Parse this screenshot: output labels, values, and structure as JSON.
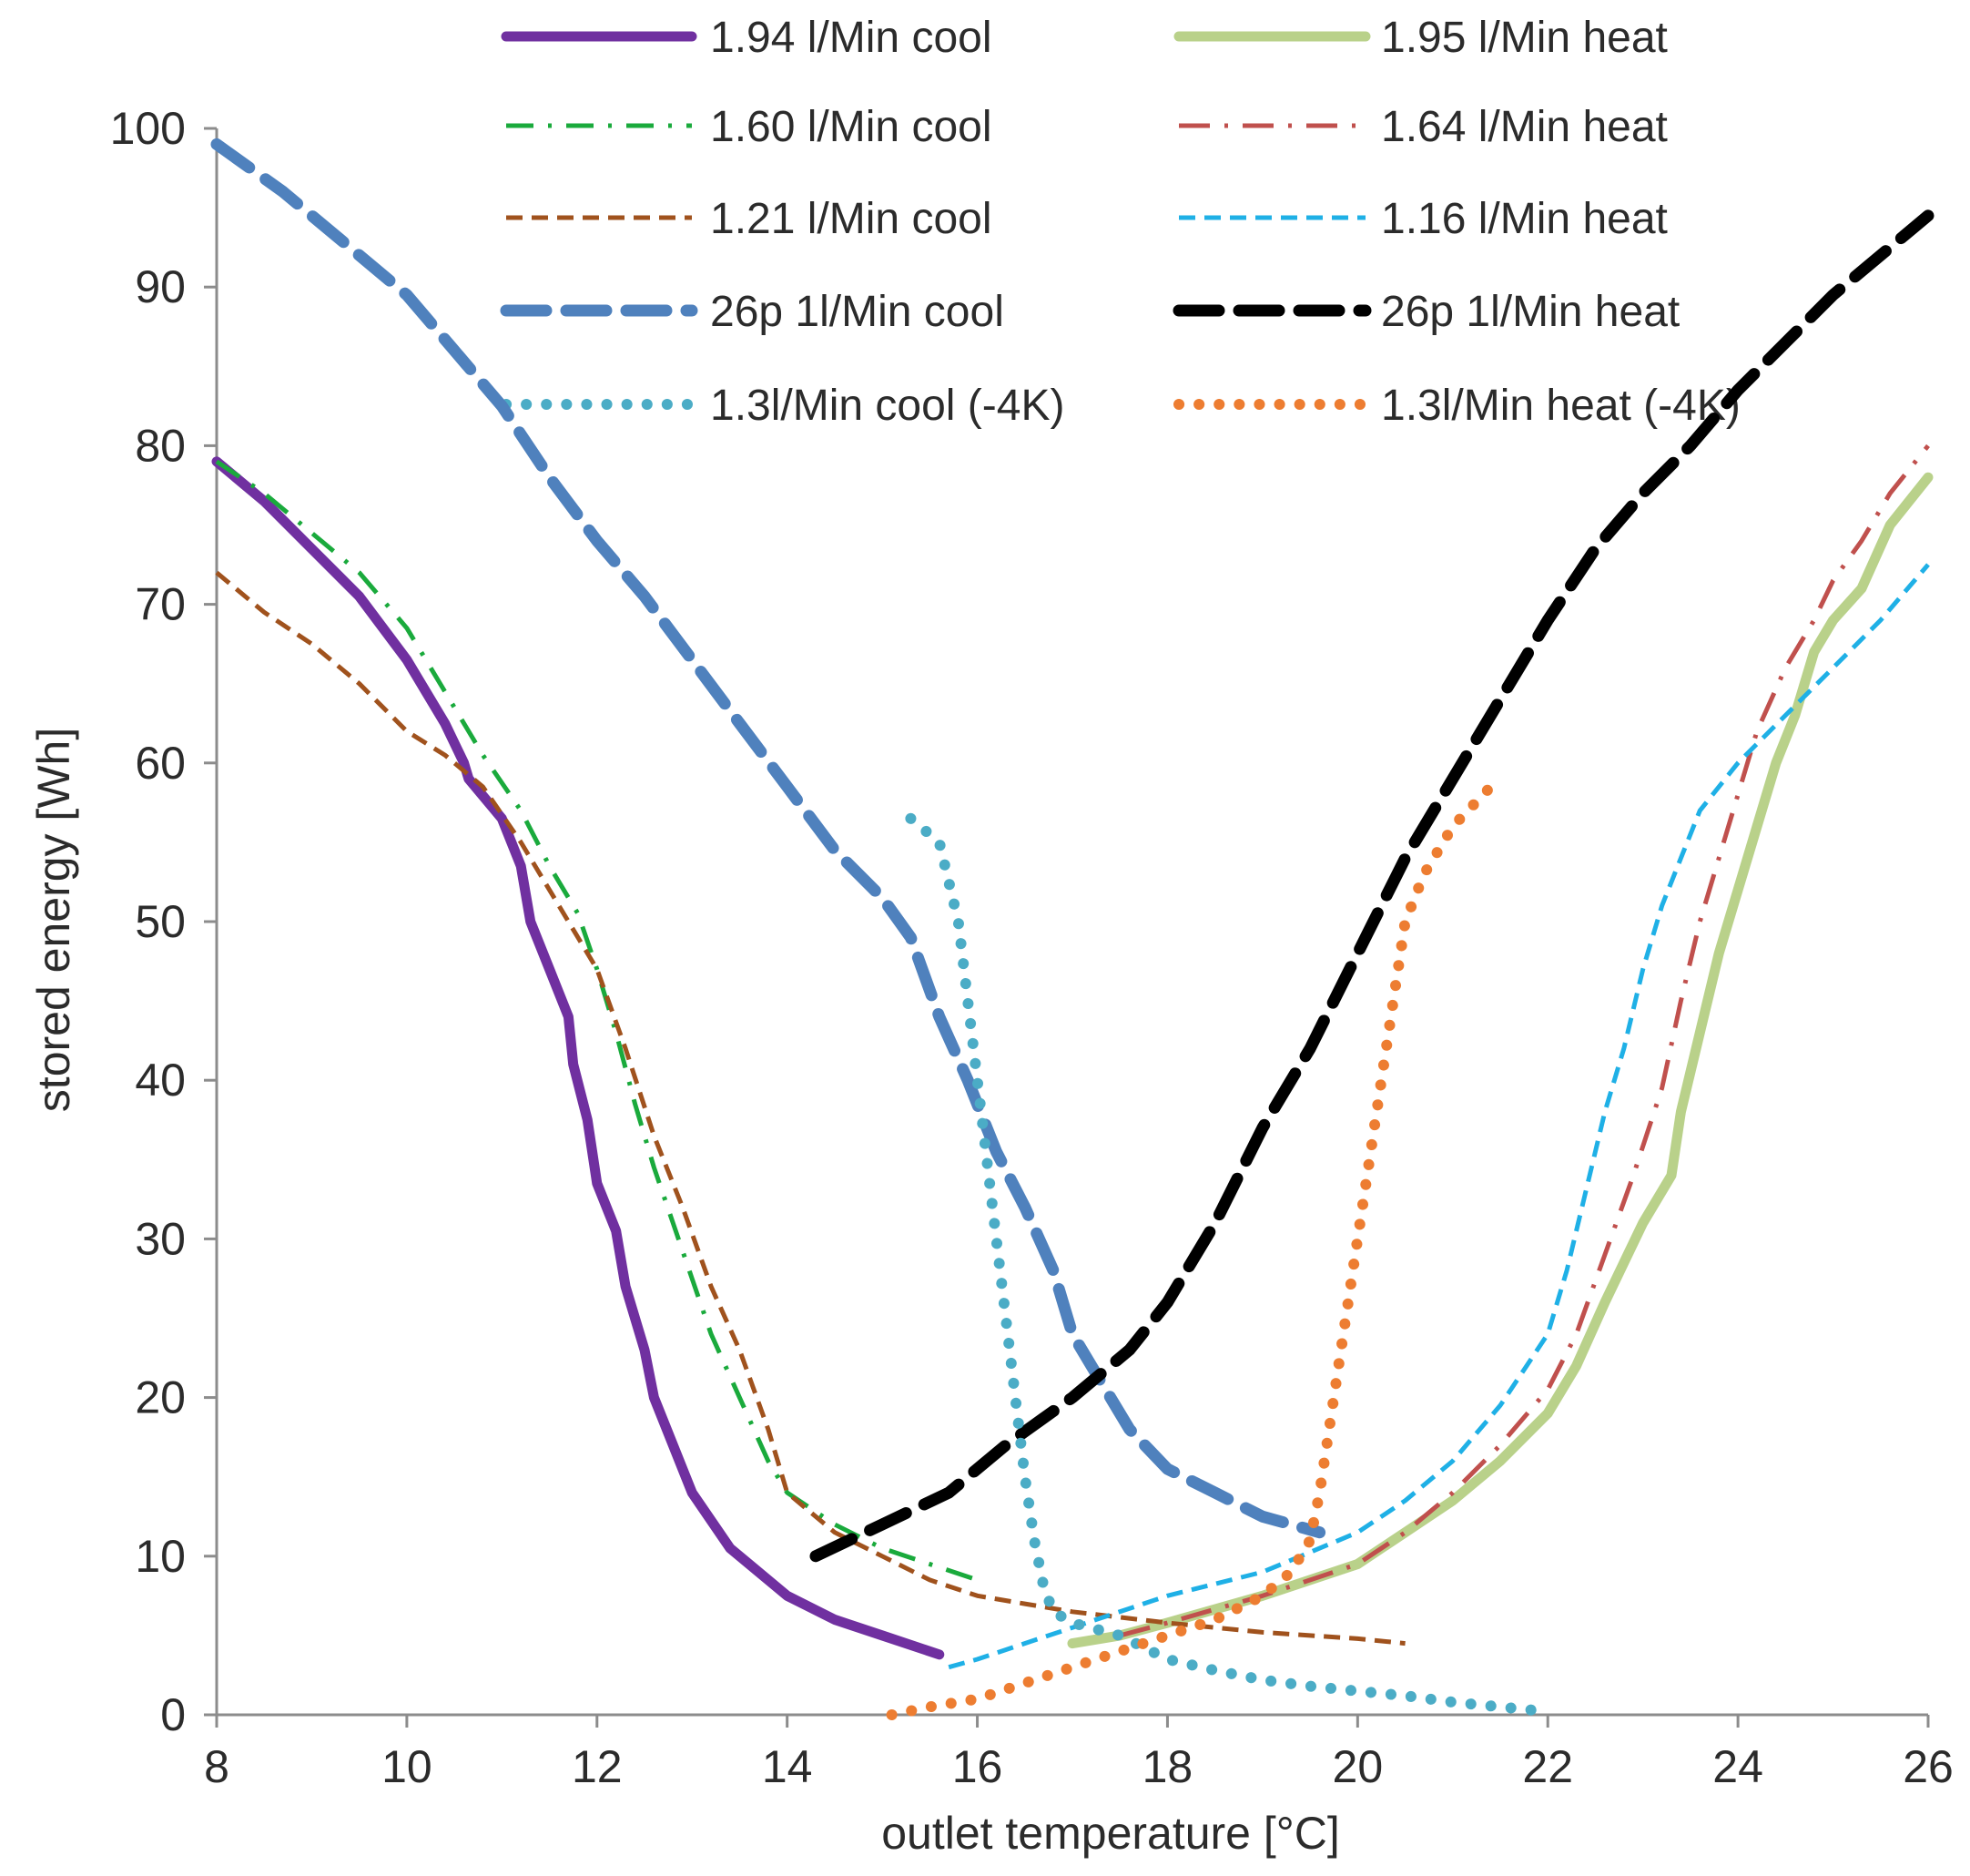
{
  "chart_data": {
    "type": "line",
    "xlabel": "outlet temperature [°C]",
    "ylabel": "stored energy [Wh]",
    "xlim": [
      8,
      26
    ],
    "ylim": [
      0,
      100
    ],
    "xticks": [
      8,
      10,
      12,
      14,
      16,
      18,
      20,
      22,
      24,
      26
    ],
    "yticks": [
      0,
      10,
      20,
      30,
      40,
      50,
      60,
      70,
      80,
      90,
      100
    ],
    "grid": false,
    "legend_position": "top",
    "series": [
      {
        "name": "1.94 l/Min cool",
        "color": "#7030a0",
        "style": "solid-thick",
        "x": [
          8.0,
          8.5,
          9.0,
          9.5,
          10.0,
          10.4,
          10.6,
          10.65,
          11.0,
          11.2,
          11.3,
          11.5,
          11.7,
          11.75,
          11.9,
          12.0,
          12.2,
          12.3,
          12.5,
          12.6,
          13.0,
          13.4,
          13.6,
          14.0,
          14.5,
          15.0,
          15.6
        ],
        "y": [
          79,
          76.5,
          73.5,
          70.5,
          66.5,
          62.5,
          60.0,
          59.0,
          56.5,
          53.5,
          50.0,
          47.0,
          44.0,
          41.0,
          37.5,
          33.5,
          30.5,
          27.0,
          23.0,
          20.0,
          14.0,
          10.5,
          9.5,
          7.5,
          6.0,
          5.0,
          3.8
        ]
      },
      {
        "name": "1.95 l/Min heat",
        "color": "#b9d18a",
        "style": "solid-thick",
        "x": [
          17.0,
          17.5,
          18.0,
          19.0,
          20.0,
          20.5,
          21.0,
          21.5,
          22.0,
          22.3,
          22.6,
          23.0,
          23.3,
          23.4,
          23.6,
          23.8,
          24.0,
          24.2,
          24.4,
          24.6,
          24.8,
          25.0,
          25.3,
          25.6,
          26.0
        ],
        "y": [
          4.5,
          5.0,
          5.8,
          7.5,
          9.5,
          11.5,
          13.5,
          16.0,
          19.0,
          22.0,
          26.0,
          31.0,
          34.0,
          38.0,
          43.0,
          48.0,
          52.0,
          56.0,
          60.0,
          63.0,
          67.0,
          69.0,
          71.0,
          75.0,
          78.0
        ]
      },
      {
        "name": "1.60 l/Min cool",
        "color": "#1aaa3c",
        "style": "dash-dot",
        "x": [
          8.0,
          8.5,
          9.0,
          9.5,
          10.0,
          10.4,
          10.8,
          11.2,
          11.5,
          11.8,
          12.0,
          12.2,
          12.4,
          12.6,
          12.8,
          13.0,
          13.2,
          13.5,
          13.8,
          14.0,
          14.5,
          15.0,
          15.5,
          16.0
        ],
        "y": [
          79,
          77.0,
          74.5,
          72.0,
          68.5,
          64.5,
          60.5,
          57.0,
          53.5,
          50.5,
          47.0,
          43.0,
          38.5,
          34.5,
          31.0,
          27.5,
          24.0,
          20.0,
          16.0,
          14.0,
          12.0,
          10.5,
          9.5,
          8.5
        ]
      },
      {
        "name": "1.64 l/Min heat",
        "color": "#c0504d",
        "style": "long-dash-dot",
        "x": [
          17.5,
          18.0,
          19.0,
          20.0,
          20.5,
          21.0,
          21.5,
          22.0,
          22.3,
          22.6,
          22.9,
          23.2,
          23.4,
          23.6,
          23.8,
          24.0,
          24.2,
          24.5,
          24.8,
          25.0,
          25.3,
          25.6,
          26.0
        ],
        "y": [
          5.0,
          5.8,
          7.5,
          9.5,
          11.5,
          14.0,
          17.0,
          20.5,
          24.0,
          29.0,
          34.0,
          39.5,
          45.0,
          50.0,
          54.0,
          58.0,
          62.0,
          66.0,
          69.0,
          71.5,
          74.0,
          77.0,
          80.0
        ]
      },
      {
        "name": "1.21 l/Min cool",
        "color": "#a0521d",
        "style": "short-dash",
        "x": [
          8.0,
          8.5,
          9.0,
          9.5,
          10.0,
          10.4,
          10.8,
          11.2,
          11.6,
          12.0,
          12.3,
          12.6,
          12.9,
          13.2,
          13.5,
          13.8,
          14.0,
          14.5,
          15.0,
          15.5,
          16.0,
          16.5,
          17.0,
          18.0,
          19.0,
          20.0,
          20.5
        ],
        "y": [
          72,
          69.5,
          67.5,
          65.0,
          62.0,
          60.5,
          58.5,
          55.0,
          51.0,
          47.0,
          42.0,
          36.5,
          32.0,
          27.0,
          23.0,
          18.0,
          14.0,
          11.5,
          10.0,
          8.5,
          7.5,
          7.0,
          6.5,
          5.8,
          5.2,
          4.8,
          4.5
        ]
      },
      {
        "name": "1.16 l/Min heat",
        "color": "#1fb0e6",
        "style": "short-dash",
        "x": [
          15.7,
          16.0,
          17.0,
          18.0,
          19.0,
          20.0,
          20.5,
          21.0,
          21.5,
          22.0,
          22.2,
          22.4,
          22.6,
          22.8,
          23.0,
          23.2,
          23.4,
          23.6,
          24.0,
          24.5,
          25.0,
          25.5,
          26.0
        ],
        "y": [
          3.0,
          3.5,
          5.5,
          7.5,
          9.0,
          11.5,
          13.5,
          16.0,
          19.5,
          24.0,
          28.0,
          33.0,
          38.0,
          42.0,
          47.0,
          51.0,
          54.0,
          57.0,
          60.0,
          63.0,
          66.0,
          69.0,
          72.5
        ]
      },
      {
        "name": "26p 1l/Min cool",
        "color": "#4f81bd",
        "style": "long-dash-thick",
        "x": [
          8.0,
          8.7,
          9.3,
          10.0,
          10.5,
          11.0,
          11.5,
          12.0,
          12.5,
          13.0,
          13.5,
          14.0,
          14.5,
          15.0,
          15.3,
          15.6,
          15.9,
          16.2,
          16.5,
          16.8,
          17.0,
          17.3,
          17.6,
          18.0,
          18.5,
          19.0,
          19.6
        ],
        "y": [
          99,
          96.0,
          93.0,
          89.5,
          86.0,
          82.5,
          78.0,
          74.0,
          70.5,
          66.5,
          62.5,
          58.5,
          54.5,
          51.5,
          49.0,
          44.0,
          40.0,
          35.5,
          32.0,
          28.0,
          24.0,
          21.0,
          18.0,
          15.5,
          14.0,
          12.5,
          11.5
        ]
      },
      {
        "name": "26p 1l/Min heat",
        "color": "#000000",
        "style": "long-dash-thick",
        "x": [
          14.3,
          15.0,
          15.7,
          16.3,
          17.0,
          17.6,
          18.0,
          18.5,
          19.0,
          19.5,
          20.0,
          20.5,
          21.0,
          21.5,
          22.0,
          22.5,
          23.0,
          23.5,
          24.0,
          24.5,
          25.0,
          25.5,
          26.0
        ],
        "y": [
          10.0,
          12.0,
          14.0,
          17.0,
          20.0,
          23.0,
          26.0,
          31.0,
          37.0,
          42.0,
          48.0,
          54.0,
          59.0,
          64.0,
          69.0,
          73.5,
          77.0,
          80.0,
          83.5,
          86.5,
          89.5,
          92.0,
          94.5
        ]
      },
      {
        "name": "1.3l/Min cool (-4K)",
        "color": "#4bacc6",
        "style": "dotted",
        "x": [
          15.3,
          15.6,
          15.8,
          15.9,
          16.0,
          16.1,
          16.2,
          16.3,
          16.4,
          16.5,
          16.6,
          16.7,
          16.8,
          17.0,
          17.5,
          18.0,
          18.5,
          19.0,
          19.5,
          20.0,
          20.5,
          21.0,
          21.5,
          22.0
        ],
        "y": [
          56.5,
          55.0,
          50.0,
          45.0,
          40.0,
          35.0,
          30.0,
          25.0,
          20.0,
          15.0,
          11.0,
          8.0,
          6.5,
          5.8,
          5.0,
          3.5,
          2.8,
          2.2,
          1.8,
          1.5,
          1.2,
          0.8,
          0.5,
          0.2
        ]
      },
      {
        "name": "1.3l/Min heat (-4K)",
        "color": "#ed7d31",
        "style": "dotted",
        "x": [
          15.1,
          15.5,
          16.0,
          16.5,
          17.0,
          17.5,
          18.0,
          18.5,
          19.0,
          19.3,
          19.5,
          19.6,
          19.7,
          19.8,
          19.9,
          20.0,
          20.1,
          20.2,
          20.3,
          20.4,
          20.5,
          20.7,
          21.0,
          21.4
        ],
        "y": [
          0.0,
          0.5,
          1.0,
          2.0,
          3.0,
          4.0,
          5.0,
          6.0,
          7.5,
          9.0,
          11.0,
          14.0,
          18.0,
          22.0,
          26.0,
          30.0,
          34.0,
          38.0,
          42.0,
          46.0,
          50.0,
          53.0,
          56.0,
          58.5
        ]
      }
    ]
  }
}
